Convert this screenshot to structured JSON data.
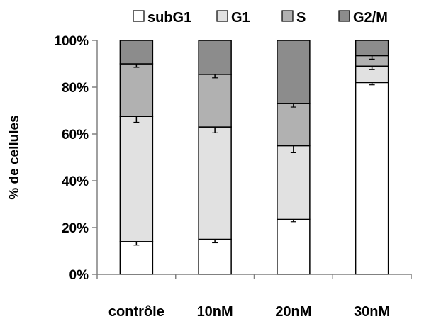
{
  "chart_data": {
    "type": "bar",
    "stacked": true,
    "categories": [
      "contrôle",
      "10nM",
      "20nM",
      "30nM"
    ],
    "series": [
      {
        "name": "subG1",
        "color": "#ffffff",
        "values": [
          14,
          15,
          23.5,
          82
        ],
        "errors": [
          1.5,
          1.5,
          1.0,
          1.0
        ]
      },
      {
        "name": "G1",
        "color": "#e1e1e1",
        "values": [
          53.5,
          48,
          31.5,
          7
        ],
        "errors": [
          2.5,
          2.5,
          3.0,
          1.5
        ]
      },
      {
        "name": "S",
        "color": "#b1b1b1",
        "values": [
          22.5,
          22.5,
          18,
          4.5
        ],
        "errors": [
          1.5,
          1.5,
          1.5,
          1.5
        ]
      },
      {
        "name": "G2/M",
        "color": "#8c8c8c",
        "values": [
          10,
          14.5,
          27,
          6.5
        ],
        "errors": [
          0,
          0,
          0,
          0
        ]
      }
    ],
    "ylabel": "% de cellules",
    "xlabel": "",
    "ylim": [
      0,
      100
    ],
    "yticks": [
      "0%",
      "20%",
      "40%",
      "60%",
      "80%",
      "100%"
    ],
    "legend_position": "top",
    "grid": false
  }
}
